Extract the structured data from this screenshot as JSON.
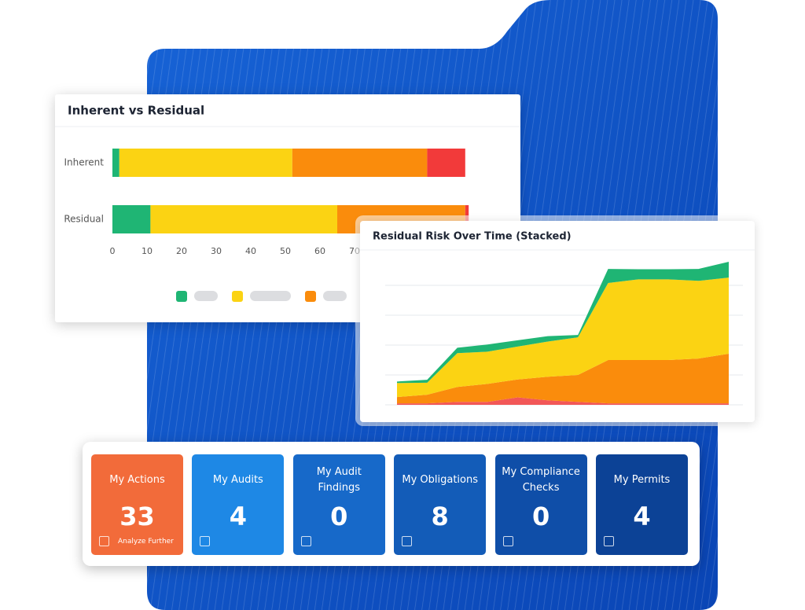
{
  "chart_data": [
    {
      "type": "hbar-stacked",
      "title": "Inherent vs Residual",
      "categories": [
        "Inherent",
        "Residual"
      ],
      "series": [
        {
          "color": "#1fb574",
          "values": [
            2,
            11
          ]
        },
        {
          "color": "#fbd313",
          "values": [
            50,
            54
          ]
        },
        {
          "color": "#fa8c0c",
          "values": [
            39,
            37
          ]
        },
        {
          "color": "#f23a3a",
          "values": [
            11,
            1
          ]
        }
      ],
      "xlim": [
        0,
        110
      ],
      "xticks": [
        0,
        10,
        20,
        30,
        40,
        50,
        60,
        70
      ]
    },
    {
      "type": "area-stacked",
      "title": "Residual Risk Over Time (Stacked)",
      "categories": [
        null,
        null,
        null,
        null,
        null,
        null,
        null,
        null,
        null,
        null,
        null,
        null
      ],
      "series": [
        {
          "color": "#f25757",
          "values": [
            0.5,
            0.5,
            1,
            1,
            2.5,
            1.5,
            1,
            0.5,
            0.5,
            0.5,
            0.5,
            0.5
          ]
        },
        {
          "color": "#fa8c0c",
          "values": [
            2.1,
            2.9,
            5,
            6,
            6,
            7.9,
            9,
            14.5,
            14.5,
            14.5,
            15,
            16.6
          ]
        },
        {
          "color": "#fbd313",
          "values": [
            4.7,
            4,
            11.3,
            10.8,
            11,
            11.8,
            12.6,
            25.8,
            27,
            27,
            26,
            25.5
          ]
        },
        {
          "color": "#1fb574",
          "values": [
            0.5,
            1,
            1.8,
            2.4,
            2.1,
            1.8,
            0.8,
            4.7,
            3.4,
            3.4,
            4,
            5.3
          ]
        }
      ],
      "ylim": [
        0,
        50
      ],
      "yticks": [
        0,
        10,
        20,
        30,
        40
      ],
      "grid": true
    }
  ],
  "tiles": [
    {
      "label": "My Actions",
      "value": "33",
      "footer": "Analyze Further",
      "color": "#f26b3a"
    },
    {
      "label": "My Audits",
      "value": "4",
      "color": "#1e88e5"
    },
    {
      "label": "My Audit Findings",
      "value": "0",
      "color": "#1769c9"
    },
    {
      "label": "My Obligations",
      "value": "8",
      "color": "#135cb8"
    },
    {
      "label": "My Compliance Checks",
      "value": "0",
      "color": "#0f4ea8"
    },
    {
      "label": "My Permits",
      "value": "4",
      "color": "#0c4296"
    }
  ]
}
